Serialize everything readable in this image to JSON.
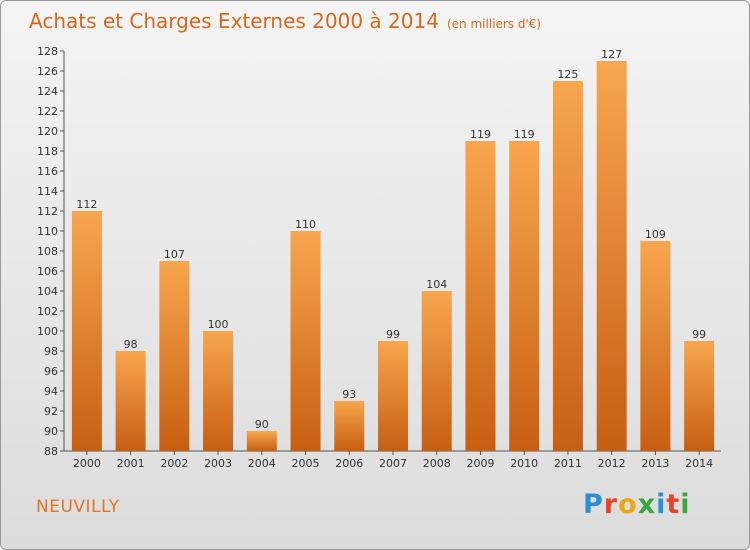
{
  "title": "Achats et Charges Externes 2000 à 2014",
  "unit_note": "(en milliers d'€)",
  "commune": "NEUVILLY",
  "logo": {
    "text": "Proxiti",
    "colors": [
      "#2a8fd6",
      "#e8432b",
      "#f2a514",
      "#3aa63c",
      "#2a8fd6",
      "#e8432b",
      "#3aa63c"
    ]
  },
  "colors": {
    "bar_light": "#f8a64e",
    "bar_dark": "#c75f12",
    "title": "#d8681c"
  },
  "chart_data": {
    "type": "bar",
    "title": "Achats et Charges Externes 2000 à 2014",
    "categories": [
      "2000",
      "2001",
      "2002",
      "2003",
      "2004",
      "2005",
      "2006",
      "2007",
      "2008",
      "2009",
      "2010",
      "2011",
      "2012",
      "2013",
      "2014"
    ],
    "values": [
      112,
      98,
      107,
      100,
      90,
      110,
      93,
      99,
      104,
      119,
      119,
      125,
      127,
      109,
      99
    ],
    "ylim": [
      88,
      128
    ],
    "yticks": [
      88,
      90,
      92,
      94,
      96,
      98,
      100,
      102,
      104,
      106,
      108,
      110,
      112,
      114,
      116,
      118,
      120,
      122,
      124,
      126,
      128
    ],
    "grid": false
  }
}
